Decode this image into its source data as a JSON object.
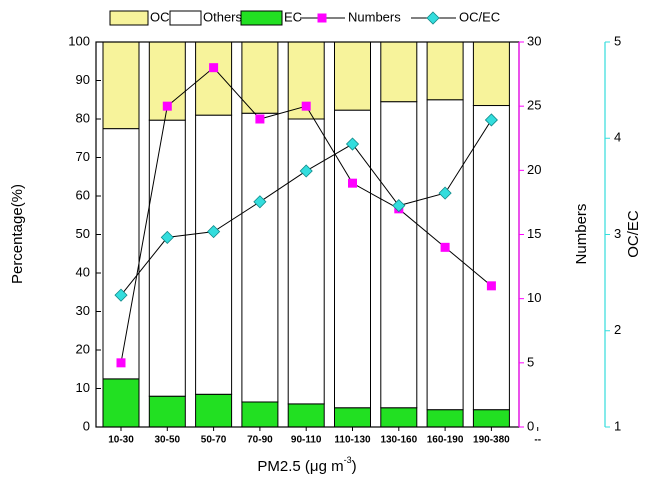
{
  "chart_data": {
    "type": "bar",
    "stacked": true,
    "x_label": "PM2.5 (μg m",
    "x_label_sup": "-3",
    "x_label_end": ")",
    "y_label": "Percentage(%)",
    "y2_label": "Numbers",
    "y3_label": "OC/EC",
    "categories": [
      "10-30",
      "30-50",
      "50-70",
      "70-90",
      "90-110",
      "110-130",
      "130-160",
      "160-190",
      "190-380",
      "--"
    ],
    "series": [
      {
        "name": "OC",
        "type": "bar",
        "color": "#f7f39b",
        "values": [
          22.5,
          20.3,
          19,
          18.5,
          20,
          17.7,
          15.5,
          15,
          16.5,
          null
        ]
      },
      {
        "name": "Others",
        "type": "bar",
        "color": "#ffffff",
        "values": [
          65,
          71.7,
          72.5,
          75,
          74,
          77.3,
          79.5,
          80.5,
          79,
          null
        ]
      },
      {
        "name": "EC",
        "type": "bar",
        "color": "#22e022",
        "values": [
          12.5,
          8,
          8.5,
          6.5,
          6,
          5,
          5,
          4.5,
          4.5,
          null
        ]
      },
      {
        "name": "Numbers",
        "type": "line",
        "axis": "y2",
        "marker": "square",
        "color": "#ff00ff",
        "values": [
          5,
          25,
          28,
          24,
          25,
          19,
          17,
          14,
          11,
          null
        ]
      },
      {
        "name": "OC/EC",
        "type": "line",
        "axis": "y3",
        "marker": "diamond",
        "color": "#33dddd",
        "values": [
          2.37,
          2.97,
          3.03,
          3.34,
          3.66,
          3.94,
          3.3,
          3.43,
          4.19,
          null
        ]
      }
    ],
    "ylim": [
      0,
      100
    ],
    "yticks": [
      0,
      10,
      20,
      30,
      40,
      50,
      60,
      70,
      80,
      90,
      100
    ],
    "y2lim": [
      0,
      30
    ],
    "y2ticks": [
      0,
      5,
      10,
      15,
      20,
      25,
      30
    ],
    "y2color": "#ff00ff",
    "y3lim": [
      1,
      5
    ],
    "y3ticks": [
      1,
      2,
      3,
      4,
      5
    ],
    "y3color": "#33dddd"
  }
}
